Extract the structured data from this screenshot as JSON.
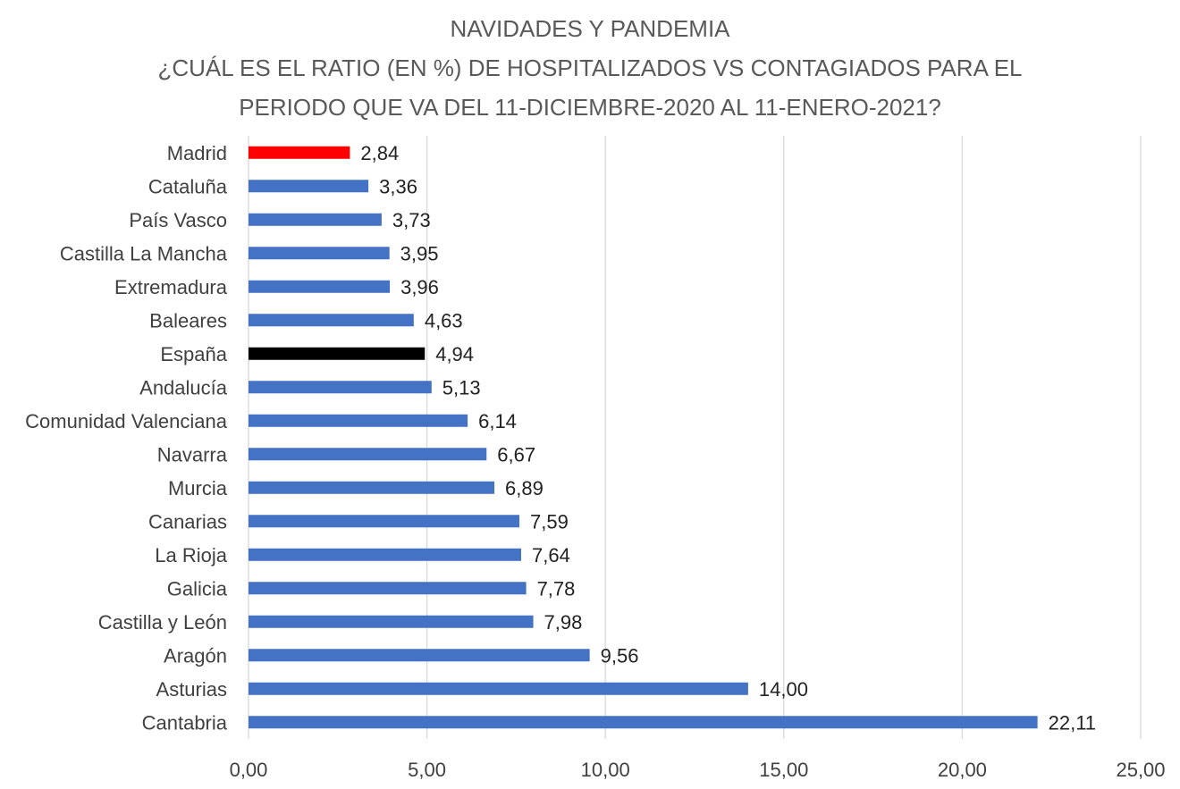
{
  "chart_data": {
    "type": "bar",
    "orientation": "horizontal",
    "title_lines": [
      "NAVIDADES Y PANDEMIA",
      "¿CUÁL ES EL RATIO (EN %) DE HOSPITALIZADOS VS CONTAGIADOS PARA EL",
      "PERIODO QUE VA DEL 11-DICIEMBRE-2020 AL 11-ENERO-2021?"
    ],
    "categories": [
      "Madrid",
      "Cataluña",
      "País Vasco",
      "Castilla La Mancha",
      "Extremadura",
      "Baleares",
      "España",
      "Andalucía",
      "Comunidad Valenciana",
      "Navarra",
      "Murcia",
      "Canarias",
      "La Rioja",
      "Galicia",
      "Castilla y León",
      "Aragón",
      "Asturias",
      "Cantabria"
    ],
    "values": [
      2.84,
      3.36,
      3.73,
      3.95,
      3.96,
      4.63,
      4.94,
      5.13,
      6.14,
      6.67,
      6.89,
      7.59,
      7.64,
      7.78,
      7.98,
      9.56,
      14.0,
      22.11
    ],
    "value_labels": [
      "2,84",
      "3,36",
      "3,73",
      "3,95",
      "3,96",
      "4,63",
      "4,94",
      "5,13",
      "6,14",
      "6,67",
      "6,89",
      "7,59",
      "7,64",
      "7,78",
      "7,98",
      "9,56",
      "14,00",
      "22,11"
    ],
    "bar_colors": [
      "#ff0000",
      "#4472c4",
      "#4472c4",
      "#4472c4",
      "#4472c4",
      "#4472c4",
      "#000000",
      "#4472c4",
      "#4472c4",
      "#4472c4",
      "#4472c4",
      "#4472c4",
      "#4472c4",
      "#4472c4",
      "#4472c4",
      "#4472c4",
      "#4472c4",
      "#4472c4"
    ],
    "xlim": [
      0,
      25
    ],
    "xticks": [
      0,
      5,
      10,
      15,
      20,
      25
    ],
    "xtick_labels": [
      "0,00",
      "5,00",
      "10,00",
      "15,00",
      "20,00",
      "25,00"
    ],
    "grid": true,
    "xlabel": "",
    "ylabel": ""
  }
}
